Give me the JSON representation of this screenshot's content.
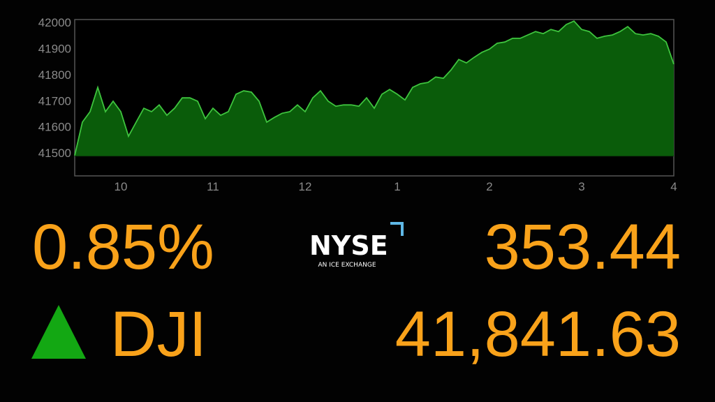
{
  "chart_data": {
    "type": "area",
    "x": [
      570,
      575,
      580,
      585,
      590,
      595,
      600,
      605,
      610,
      615,
      620,
      625,
      630,
      635,
      640,
      645,
      650,
      655,
      660,
      665,
      670,
      675,
      680,
      685,
      690,
      695,
      700,
      705,
      710,
      715,
      720,
      725,
      730,
      735,
      740,
      745,
      750,
      755,
      760,
      765,
      770,
      775,
      780,
      785,
      790,
      795,
      800,
      805,
      810,
      815,
      820,
      825,
      830,
      835,
      840,
      845,
      850,
      855,
      860,
      865,
      870,
      875,
      880,
      885,
      890,
      895,
      900,
      905,
      910,
      915,
      920,
      925,
      930,
      935,
      940,
      945,
      950,
      955,
      960
    ],
    "values": [
      41490,
      41618,
      41658,
      41751,
      41658,
      41698,
      41658,
      41564,
      41618,
      41671,
      41658,
      41684,
      41644,
      41671,
      41711,
      41711,
      41698,
      41631,
      41671,
      41644,
      41658,
      41725,
      41738,
      41733,
      41698,
      41618,
      41636,
      41652,
      41658,
      41684,
      41658,
      41711,
      41738,
      41698,
      41679,
      41684,
      41684,
      41679,
      41711,
      41671,
      41725,
      41743,
      41725,
      41703,
      41751,
      41765,
      41770,
      41791,
      41786,
      41818,
      41858,
      41845,
      41866,
      41885,
      41898,
      41920,
      41925,
      41939,
      41939,
      41952,
      41965,
      41957,
      41973,
      41965,
      41992,
      42005,
      41973,
      41965,
      41939,
      41947,
      41952,
      41965,
      41984,
      41957,
      41952,
      41957,
      41947,
      41925,
      41840
    ],
    "baseline": 41488,
    "line_color": "#3ec43e",
    "fill_color": "#0a5c0a",
    "xlim": [
      570,
      960
    ],
    "xticks": [
      {
        "value": 600,
        "label": "10"
      },
      {
        "value": 660,
        "label": "11"
      },
      {
        "value": 720,
        "label": "12"
      },
      {
        "value": 780,
        "label": "1"
      },
      {
        "value": 840,
        "label": "2"
      },
      {
        "value": 900,
        "label": "3"
      },
      {
        "value": 960,
        "label": "4"
      }
    ],
    "ylim": [
      41412,
      42011
    ],
    "yticks": [
      41500,
      41600,
      41700,
      41800,
      41900,
      42000
    ],
    "grid": false
  },
  "quote": {
    "percent_change": "0.85%",
    "point_change": "353.44",
    "symbol": "DJI",
    "price": "41,841.63"
  },
  "logo": {
    "name": "NYSE",
    "tagline": "AN ICE EXCHANGE"
  }
}
